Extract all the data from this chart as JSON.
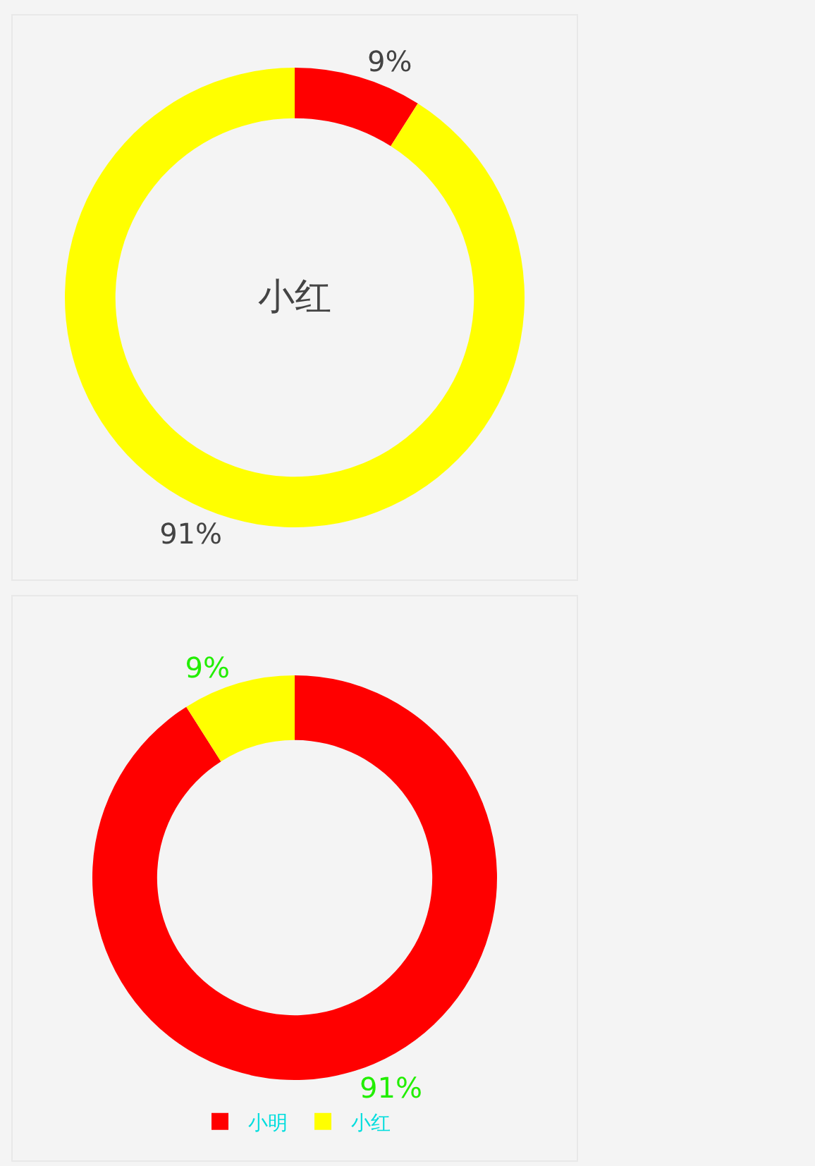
{
  "chart_data": [
    {
      "type": "donut",
      "categories": [
        null,
        null
      ],
      "values": [
        9,
        91
      ],
      "colors": [
        "#ff0000",
        "#ffff00"
      ],
      "value_labels": [
        "9%",
        "91%"
      ],
      "annotations": [
        "小红"
      ],
      "legend": false
    },
    {
      "type": "donut",
      "categories": [
        "小明",
        "小红"
      ],
      "values": [
        91,
        9
      ],
      "colors": [
        "#ff0000",
        "#ffff00"
      ],
      "value_labels": [
        "91%",
        "9%"
      ],
      "legend": "bottom"
    }
  ]
}
